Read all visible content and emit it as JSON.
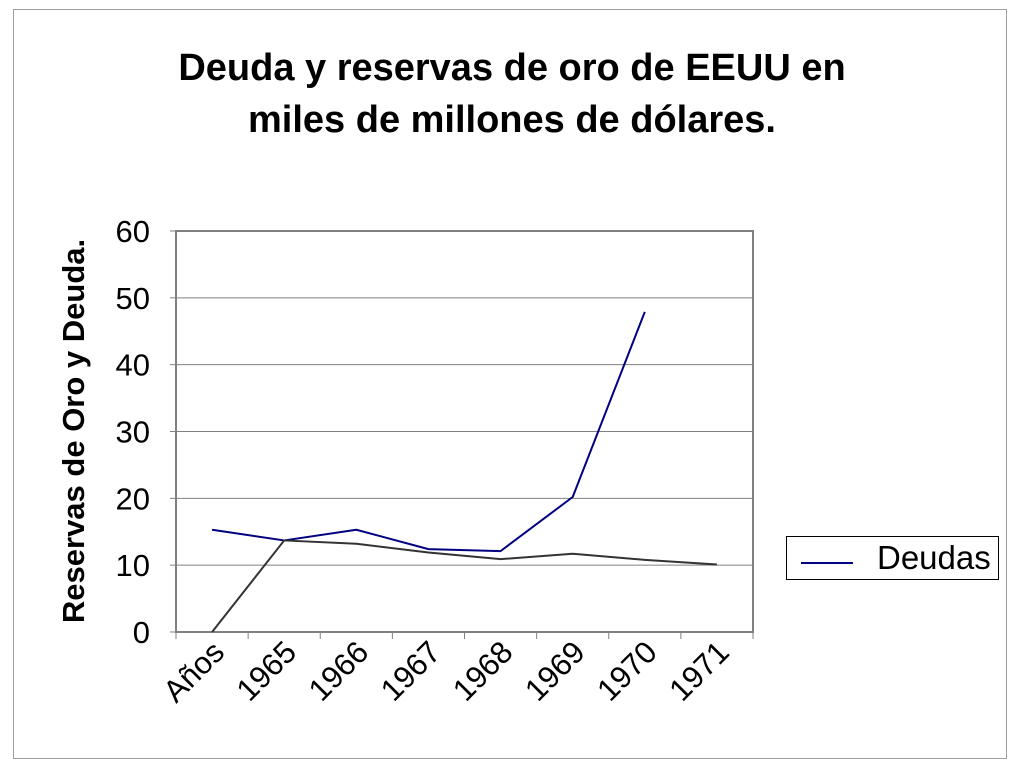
{
  "chart_data": {
    "type": "line",
    "title": "Deuda y reservas de oro de EEUU en miles de millones de dólares.",
    "title_lines": [
      "Deuda y reservas de oro de EEUU en",
      "miles de millones de dólares."
    ],
    "ylabel": "Reservas de Oro y Deuda.",
    "xlabel": "",
    "categories": [
      "Años",
      "1965",
      "1966",
      "1967",
      "1968",
      "1969",
      "1970",
      "1971"
    ],
    "ylim": [
      0,
      60
    ],
    "yticks": [
      0,
      10,
      20,
      30,
      40,
      50,
      60
    ],
    "grid": true,
    "legend_position": "right",
    "series": [
      {
        "name": "Deudas",
        "color": "#000080",
        "values": [
          15.3,
          13.7,
          15.3,
          12.4,
          12.1,
          20.2,
          47.9,
          null
        ]
      },
      {
        "color": "#333333",
        "values": [
          0,
          13.7,
          13.2,
          11.9,
          10.9,
          11.7,
          10.8,
          10.1
        ]
      }
    ]
  }
}
